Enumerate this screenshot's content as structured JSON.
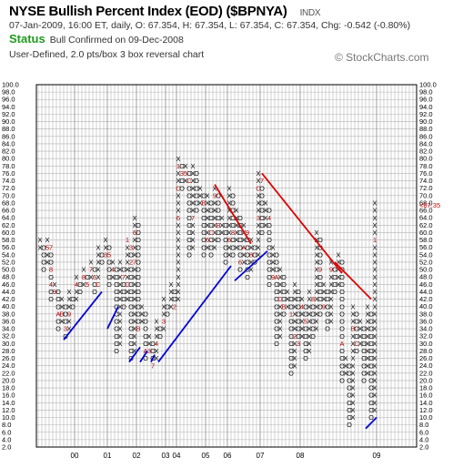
{
  "header": {
    "title": "NYSE Bullish Percent Index (EOD) ($BPNYA)",
    "ticker_tag": "INDX",
    "quote_line": "07-Jan-2009, 16:00 ET, daily, O: 67.354, H: 67.354, L: 67.354, C: 67.354, Chg: -0.542 (-0.80%)",
    "status_label": "Status",
    "status_text": "Bull Confirmed on 09-Dec-2008",
    "chart_settings": "User-Defined, 2.0 pts/box 3 box reversal chart",
    "watermark": "© StockCharts.com"
  },
  "colors": {
    "grid": "#b4b4b4",
    "plot_border": "#000000",
    "symbol": "#000000",
    "month_marker": "#b00000",
    "support_line": "#0000dd",
    "resistance_line": "#e00000",
    "last_price": "#c00000",
    "status": "#1e9a1e"
  },
  "chart_data": {
    "type": "point_and_figure",
    "box_size": 2.0,
    "reversal": 3,
    "ylim": [
      2,
      100
    ],
    "y_ticks": [
      "100.0",
      "98.0",
      "96.0",
      "94.0",
      "92.0",
      "90.0",
      "88.0",
      "86.0",
      "84.0",
      "82.0",
      "80.0",
      "78.0",
      "76.0",
      "74.0",
      "72.0",
      "70.0",
      "68.0",
      "66.0",
      "64.0",
      "62.0",
      "60.0",
      "58.0",
      "56.0",
      "54.0",
      "52.0",
      "50.0",
      "48.0",
      "46.0",
      "44.0",
      "42.0",
      "40.0",
      "38.0",
      "36.0",
      "34.0",
      "32.0",
      "30.0",
      "28.0",
      "26.0",
      "24.0",
      "22.0",
      "20.0",
      "18.0",
      "16.0",
      "14.0",
      "12.0",
      "10.0",
      "8.0",
      "6.0",
      "4.0",
      "2.0"
    ],
    "x_tick_labels": [
      "00",
      "01",
      "02",
      "03",
      "04",
      "05",
      "06",
      "07",
      "08",
      "09"
    ],
    "x_tick_columns": [
      10,
      19,
      27,
      35,
      38,
      46,
      52,
      61,
      72,
      93
    ],
    "total_columns": 103,
    "last_price_label": "<67.35",
    "last_price_value": 67.35,
    "columns": [
      {
        "t": "X",
        "low": 56,
        "high": 58
      },
      {
        "t": "O",
        "low": 50,
        "high": 56
      },
      {
        "t": "X",
        "low": 52,
        "high": 58
      },
      {
        "t": "O",
        "low": 42,
        "high": 56
      },
      {
        "t": "X",
        "low": 44,
        "high": 46
      },
      {
        "t": "O",
        "low": 34,
        "high": 44
      },
      {
        "t": "X",
        "low": 36,
        "high": 42
      },
      {
        "t": "O",
        "low": 32,
        "high": 40
      },
      {
        "t": "X",
        "low": 34,
        "high": 44
      },
      {
        "t": "O",
        "low": 40,
        "high": 42
      },
      {
        "t": "X",
        "low": 42,
        "high": 48
      },
      {
        "t": "O",
        "low": 44,
        "high": 46
      },
      {
        "t": "X",
        "low": 46,
        "high": 50
      },
      {
        "t": "O",
        "low": 46,
        "high": 48
      },
      {
        "t": "X",
        "low": 48,
        "high": 52
      },
      {
        "t": "O",
        "low": 44,
        "high": 50
      },
      {
        "t": "X",
        "low": 46,
        "high": 56
      },
      {
        "t": "O",
        "low": 52,
        "high": 54
      },
      {
        "t": "X",
        "low": 54,
        "high": 58
      },
      {
        "t": "O",
        "low": 46,
        "high": 56
      },
      {
        "t": "X",
        "low": 48,
        "high": 52
      },
      {
        "t": "O",
        "low": 28,
        "high": 50
      },
      {
        "t": "X",
        "low": 30,
        "high": 52
      },
      {
        "t": "O",
        "low": 40,
        "high": 50
      },
      {
        "t": "X",
        "low": 42,
        "high": 58
      },
      {
        "t": "O",
        "low": 26,
        "high": 56
      },
      {
        "t": "X",
        "low": 28,
        "high": 64
      },
      {
        "t": "O",
        "low": 34,
        "high": 62
      },
      {
        "t": "X",
        "low": 36,
        "high": 40
      },
      {
        "t": "O",
        "low": 26,
        "high": 38
      },
      {
        "t": "X",
        "low": 28,
        "high": 32
      },
      {
        "t": "O",
        "low": 24,
        "high": 30
      },
      {
        "t": "X",
        "low": 26,
        "high": 36
      },
      {
        "t": "O",
        "low": 32,
        "high": 34
      },
      {
        "t": "X",
        "low": 34,
        "high": 42
      },
      {
        "t": "O",
        "low": 38,
        "high": 40
      },
      {
        "t": "X",
        "low": 40,
        "high": 46
      },
      {
        "t": "O",
        "low": 40,
        "high": 44
      },
      {
        "t": "X",
        "low": 42,
        "high": 80
      },
      {
        "t": "O",
        "low": 72,
        "high": 78
      },
      {
        "t": "X",
        "low": 74,
        "high": 78
      },
      {
        "t": "O",
        "low": 54,
        "high": 76
      },
      {
        "t": "X",
        "low": 56,
        "high": 78
      },
      {
        "t": "O",
        "low": 66,
        "high": 76
      },
      {
        "t": "X",
        "low": 68,
        "high": 72
      },
      {
        "t": "O",
        "low": 54,
        "high": 70
      },
      {
        "t": "X",
        "low": 56,
        "high": 70
      },
      {
        "t": "O",
        "low": 54,
        "high": 68
      },
      {
        "t": "X",
        "low": 56,
        "high": 72
      },
      {
        "t": "O",
        "low": 58,
        "high": 70
      },
      {
        "t": "X",
        "low": 60,
        "high": 64
      },
      {
        "t": "O",
        "low": 52,
        "high": 62
      },
      {
        "t": "X",
        "low": 54,
        "high": 72
      },
      {
        "t": "O",
        "low": 54,
        "high": 70
      },
      {
        "t": "X",
        "low": 56,
        "high": 66
      },
      {
        "t": "O",
        "low": 50,
        "high": 64
      },
      {
        "t": "X",
        "low": 52,
        "high": 62
      },
      {
        "t": "O",
        "low": 48,
        "high": 60
      },
      {
        "t": "X",
        "low": 50,
        "high": 58
      },
      {
        "t": "O",
        "low": 52,
        "high": 56
      },
      {
        "t": "X",
        "low": 54,
        "high": 76
      },
      {
        "t": "O",
        "low": 60,
        "high": 74
      },
      {
        "t": "X",
        "low": 62,
        "high": 68
      },
      {
        "t": "O",
        "low": 46,
        "high": 66
      },
      {
        "t": "X",
        "low": 48,
        "high": 56
      },
      {
        "t": "O",
        "low": 30,
        "high": 54
      },
      {
        "t": "X",
        "low": 32,
        "high": 50
      },
      {
        "t": "O",
        "low": 38,
        "high": 48
      },
      {
        "t": "X",
        "low": 40,
        "high": 44
      },
      {
        "t": "O",
        "low": 22,
        "high": 42
      },
      {
        "t": "X",
        "low": 24,
        "high": 46
      },
      {
        "t": "O",
        "low": 30,
        "high": 44
      },
      {
        "t": "X",
        "low": 32,
        "high": 42
      },
      {
        "t": "O",
        "low": 26,
        "high": 40
      },
      {
        "t": "X",
        "low": 28,
        "high": 44
      },
      {
        "t": "O",
        "low": 32,
        "high": 42
      },
      {
        "t": "X",
        "low": 34,
        "high": 60
      },
      {
        "t": "O",
        "low": 38,
        "high": 58
      },
      {
        "t": "X",
        "low": 40,
        "high": 46
      },
      {
        "t": "O",
        "low": 34,
        "high": 44
      },
      {
        "t": "X",
        "low": 36,
        "high": 52
      },
      {
        "t": "O",
        "low": 44,
        "high": 50
      },
      {
        "t": "X",
        "low": 46,
        "high": 54
      },
      {
        "t": "O",
        "low": 20,
        "high": 52
      },
      {
        "t": "X",
        "low": 22,
        "high": 26
      },
      {
        "t": "O",
        "low": 8,
        "high": 24
      },
      {
        "t": "X",
        "low": 10,
        "high": 40
      },
      {
        "t": "O",
        "low": 28,
        "high": 38
      },
      {
        "t": "X",
        "low": 30,
        "high": 36
      },
      {
        "t": "O",
        "low": 20,
        "high": 34
      },
      {
        "t": "X",
        "low": 22,
        "high": 40
      },
      {
        "t": "O",
        "low": 10,
        "high": 38
      },
      {
        "t": "X",
        "low": 12,
        "high": 68
      }
    ],
    "month_markers": [
      {
        "col": 5,
        "v": 38,
        "m": "A"
      },
      {
        "col": 6,
        "v": 38,
        "m": "B"
      },
      {
        "col": 7,
        "v": 34,
        "m": "3"
      },
      {
        "col": 8,
        "v": 38,
        "m": "9"
      },
      {
        "col": 3,
        "v": 46,
        "m": "4"
      },
      {
        "col": 4,
        "v": 44,
        "m": "9"
      },
      {
        "col": 2,
        "v": 56,
        "m": "5"
      },
      {
        "col": 3,
        "v": 56,
        "m": "7"
      },
      {
        "col": 3,
        "v": 50,
        "m": "8"
      },
      {
        "col": 10,
        "v": 46,
        "m": "4"
      },
      {
        "col": 12,
        "v": 48,
        "m": "8"
      },
      {
        "col": 13,
        "v": 46,
        "m": "5"
      },
      {
        "col": 14,
        "v": 50,
        "m": "7"
      },
      {
        "col": 15,
        "v": 48,
        "m": "6"
      },
      {
        "col": 16,
        "v": 46,
        "m": "C"
      },
      {
        "col": 18,
        "v": 54,
        "m": "3"
      },
      {
        "col": 19,
        "v": 54,
        "m": "5"
      },
      {
        "col": 20,
        "v": 50,
        "m": "4"
      },
      {
        "col": 23,
        "v": 48,
        "m": "7"
      },
      {
        "col": 24,
        "v": 46,
        "m": "C"
      },
      {
        "col": 24,
        "v": 58,
        "m": "1"
      },
      {
        "col": 25,
        "v": 56,
        "m": "3"
      },
      {
        "col": 25,
        "v": 52,
        "m": "2"
      },
      {
        "col": 26,
        "v": 60,
        "m": "6"
      },
      {
        "col": 26,
        "v": 52,
        "m": "7"
      },
      {
        "col": 27,
        "v": 34,
        "m": "B"
      },
      {
        "col": 28,
        "v": 42,
        "m": "8"
      },
      {
        "col": 29,
        "v": 28,
        "m": "A"
      },
      {
        "col": 30,
        "v": 28,
        "m": "3"
      },
      {
        "col": 31,
        "v": 24,
        "m": "7"
      },
      {
        "col": 32,
        "v": 30,
        "m": "4"
      },
      {
        "col": 33,
        "v": 36,
        "m": "B"
      },
      {
        "col": 34,
        "v": 36,
        "m": "3"
      },
      {
        "col": 35,
        "v": 50,
        "m": "1"
      },
      {
        "col": 37,
        "v": 40,
        "m": "2"
      },
      {
        "col": 38,
        "v": 78,
        "m": "1"
      },
      {
        "col": 38,
        "v": 72,
        "m": "C"
      },
      {
        "col": 38,
        "v": 64,
        "m": "6"
      },
      {
        "col": 39,
        "v": 76,
        "m": "3"
      },
      {
        "col": 40,
        "v": 76,
        "m": "5"
      },
      {
        "col": 41,
        "v": 74,
        "m": "C"
      },
      {
        "col": 42,
        "v": 64,
        "m": "7"
      },
      {
        "col": 43,
        "v": 58,
        "m": "8"
      },
      {
        "col": 44,
        "v": 66,
        "m": "4"
      },
      {
        "col": 45,
        "v": 68,
        "m": "B"
      },
      {
        "col": 46,
        "v": 58,
        "m": "6"
      },
      {
        "col": 47,
        "v": 60,
        "m": "C"
      },
      {
        "col": 48,
        "v": 70,
        "m": "9"
      },
      {
        "col": 49,
        "v": 62,
        "m": "B"
      },
      {
        "col": 50,
        "v": 58,
        "m": "C"
      },
      {
        "col": 51,
        "v": 68,
        "m": "5"
      },
      {
        "col": 52,
        "v": 58,
        "m": "6"
      },
      {
        "col": 53,
        "v": 60,
        "m": "8"
      },
      {
        "col": 55,
        "v": 52,
        "m": "6"
      },
      {
        "col": 56,
        "v": 56,
        "m": "A"
      },
      {
        "col": 56,
        "v": 48,
        "m": "B"
      },
      {
        "col": 57,
        "v": 60,
        "m": "9"
      },
      {
        "col": 58,
        "v": 54,
        "m": "8"
      },
      {
        "col": 60,
        "v": 72,
        "m": "C"
      },
      {
        "col": 60,
        "v": 64,
        "m": "3"
      },
      {
        "col": 61,
        "v": 74,
        "m": "7"
      },
      {
        "col": 62,
        "v": 72,
        "m": "8"
      },
      {
        "col": 63,
        "v": 64,
        "m": "4"
      },
      {
        "col": 64,
        "v": 48,
        "m": "9"
      },
      {
        "col": 65,
        "v": 48,
        "m": "A"
      },
      {
        "col": 66,
        "v": 42,
        "m": "C"
      },
      {
        "col": 67,
        "v": 40,
        "m": "B"
      },
      {
        "col": 69,
        "v": 38,
        "m": "1"
      },
      {
        "col": 70,
        "v": 32,
        "m": "2"
      },
      {
        "col": 71,
        "v": 30,
        "m": "3"
      },
      {
        "col": 72,
        "v": 40,
        "m": "4"
      },
      {
        "col": 73,
        "v": 36,
        "m": "5"
      },
      {
        "col": 74,
        "v": 54,
        "m": "6"
      },
      {
        "col": 75,
        "v": 42,
        "m": "8"
      },
      {
        "col": 77,
        "v": 50,
        "m": "9"
      },
      {
        "col": 78,
        "v": 40,
        "m": "9"
      },
      {
        "col": 80,
        "v": 50,
        "m": "9"
      },
      {
        "col": 83,
        "v": 30,
        "m": "A"
      },
      {
        "col": 86,
        "v": 34,
        "m": "B"
      },
      {
        "col": 87,
        "v": 30,
        "m": "C"
      },
      {
        "col": 88,
        "v": 50,
        "m": "C"
      },
      {
        "col": 92,
        "v": 58,
        "m": "1"
      }
    ],
    "trend_lines": [
      {
        "kind": "support",
        "from": {
          "col": 6.5,
          "v": 31
        },
        "to": {
          "col": 17,
          "v": 44
        }
      },
      {
        "kind": "support",
        "from": {
          "col": 18.5,
          "v": 34
        },
        "to": {
          "col": 21.5,
          "v": 40
        }
      },
      {
        "kind": "support",
        "from": {
          "col": 24.5,
          "v": 25
        },
        "to": {
          "col": 27.5,
          "v": 29
        }
      },
      {
        "kind": "support",
        "from": {
          "col": 27.5,
          "v": 25
        },
        "to": {
          "col": 29.5,
          "v": 28
        }
      },
      {
        "kind": "support",
        "from": {
          "col": 30.5,
          "v": 25
        },
        "to": {
          "col": 31.5,
          "v": 27
        }
      },
      {
        "kind": "support",
        "from": {
          "col": 32.5,
          "v": 25
        },
        "to": {
          "col": 52.5,
          "v": 51
        }
      },
      {
        "kind": "support",
        "from": {
          "col": 53.5,
          "v": 47
        },
        "to": {
          "col": 62.5,
          "v": 55
        }
      },
      {
        "kind": "support",
        "from": {
          "col": 89.5,
          "v": 7
        },
        "to": {
          "col": 92.5,
          "v": 10
        }
      },
      {
        "kind": "resistance",
        "from": {
          "col": 48,
          "v": 73
        },
        "to": {
          "col": 58,
          "v": 57
        }
      },
      {
        "kind": "resistance",
        "from": {
          "col": 61,
          "v": 76
        },
        "to": {
          "col": 83,
          "v": 49
        }
      },
      {
        "kind": "resistance",
        "from": {
          "col": 81,
          "v": 52
        },
        "to": {
          "col": 91,
          "v": 42
        }
      }
    ]
  }
}
